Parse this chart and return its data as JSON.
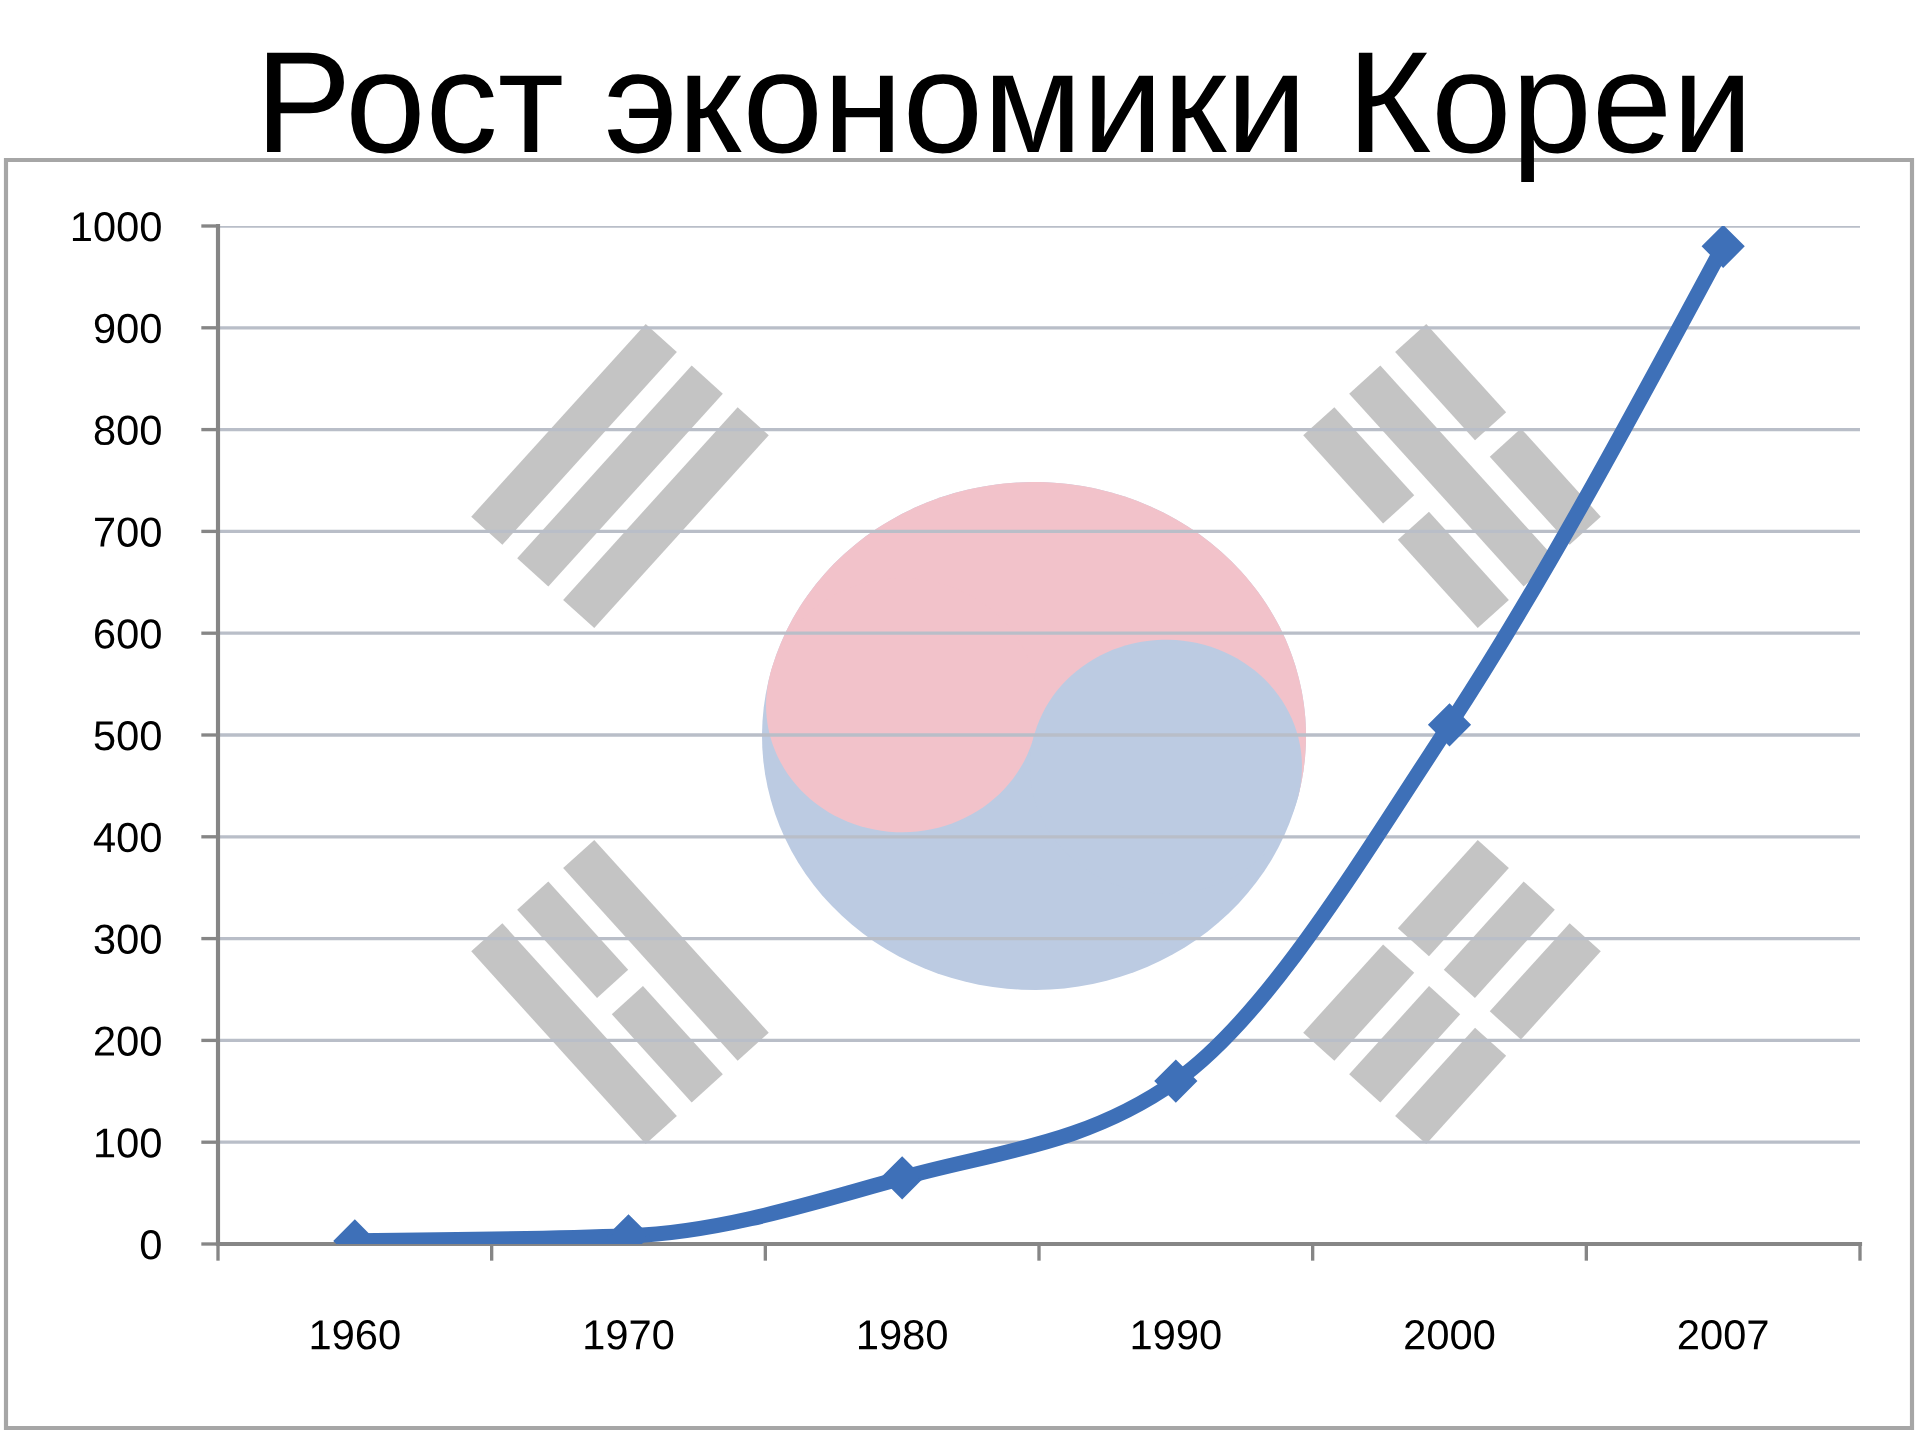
{
  "chart_data": {
    "type": "line",
    "title": "Рост экономики Кореи",
    "categories": [
      "1960",
      "1970",
      "1980",
      "1990",
      "2000",
      "2007"
    ],
    "series": [
      {
        "color": "#3e70b8",
        "values": [
          3,
          8,
          65,
          160,
          510,
          980
        ]
      }
    ],
    "ylim": [
      0,
      1000
    ],
    "yticks": [
      0,
      100,
      200,
      300,
      400,
      500,
      600,
      700,
      800,
      900,
      1000
    ],
    "grid": "y",
    "marker": "diamond",
    "line_style": "solid"
  }
}
